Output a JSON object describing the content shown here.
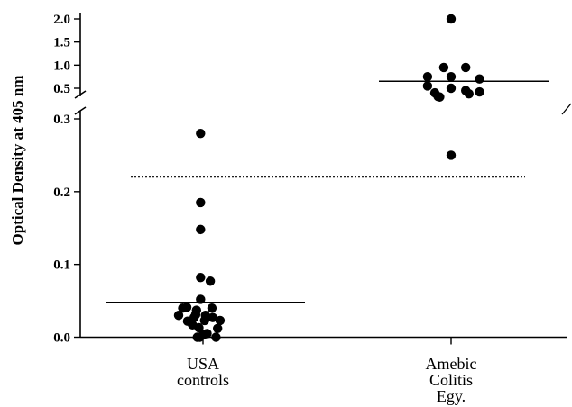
{
  "chart_data": {
    "type": "scatter",
    "title": "",
    "xlabel": "",
    "ylabel": "Optical Density at 405 nm",
    "categories": [
      [
        "USA",
        "controls"
      ],
      [
        "Amebic",
        "Colitis",
        "Egy."
      ]
    ],
    "y_axis": {
      "broken": true,
      "lower_segment": {
        "range": [
          0.0,
          0.3
        ],
        "ticks": [
          "0.0",
          "0.1",
          "0.2",
          "0.3"
        ]
      },
      "upper_segment": {
        "range": [
          0.4,
          2.0
        ],
        "ticks": [
          "0.5",
          "1.0",
          "1.5",
          "2.0"
        ]
      }
    },
    "cutoff_line": {
      "value": 0.22,
      "style": "dotted"
    },
    "series": [
      {
        "category_index": 0,
        "mean": 0.048,
        "points": [
          {
            "offset": -3,
            "y": 0.03
          },
          {
            "offset": -2.5,
            "y": 0.04
          },
          {
            "offset": -2,
            "y": 0.041
          },
          {
            "offset": -1.9,
            "y": 0.022
          },
          {
            "offset": -1.3,
            "y": 0.017
          },
          {
            "offset": -1.1,
            "y": 0.027
          },
          {
            "offset": -0.9,
            "y": 0.031
          },
          {
            "offset": -0.8,
            "y": 0.037
          },
          {
            "offset": -0.7,
            "y": 0.0
          },
          {
            "offset": -0.5,
            "y": 0.013
          },
          {
            "offset": -0.4,
            "y": 0.0
          },
          {
            "offset": -0.3,
            "y": 0.052
          },
          {
            "offset": -0.3,
            "y": 0.082
          },
          {
            "offset": -0.3,
            "y": 0.148
          },
          {
            "offset": -0.3,
            "y": 0.185
          },
          {
            "offset": -0.3,
            "y": 0.28
          },
          {
            "offset": 0.0,
            "y": 0.003
          },
          {
            "offset": 0.2,
            "y": 0.023
          },
          {
            "offset": 0.3,
            "y": 0.03
          },
          {
            "offset": 0.5,
            "y": 0.005
          },
          {
            "offset": 0.9,
            "y": 0.077
          },
          {
            "offset": 1.1,
            "y": 0.04
          },
          {
            "offset": 1.2,
            "y": 0.027
          },
          {
            "offset": 1.6,
            "y": 0.0
          },
          {
            "offset": 1.8,
            "y": 0.012
          },
          {
            "offset": 2.1,
            "y": 0.023
          }
        ]
      },
      {
        "category_index": 1,
        "mean": 0.65,
        "points": [
          {
            "offset": -2.9,
            "y": 0.75
          },
          {
            "offset": -2.9,
            "y": 0.55
          },
          {
            "offset": -2.0,
            "y": 0.4
          },
          {
            "offset": -1.6,
            "y": 0.32
          },
          {
            "offset": -1.4,
            "y": 0.31
          },
          {
            "offset": -0.9,
            "y": 0.95
          },
          {
            "offset": 0.0,
            "y": 0.75
          },
          {
            "offset": 0.0,
            "y": 0.5
          },
          {
            "offset": 0.0,
            "y": 2.0
          },
          {
            "offset": 0.0,
            "y": 0.25
          },
          {
            "offset": 1.8,
            "y": 0.95
          },
          {
            "offset": 1.8,
            "y": 0.45
          },
          {
            "offset": 2.2,
            "y": 0.38
          },
          {
            "offset": 3.5,
            "y": 0.7
          },
          {
            "offset": 3.5,
            "y": 0.42
          }
        ]
      }
    ]
  }
}
